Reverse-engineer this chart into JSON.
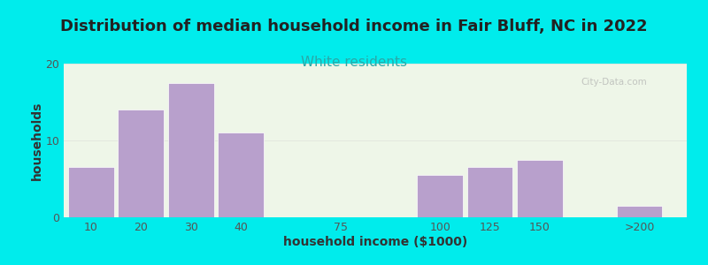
{
  "title": "Distribution of median household income in Fair Bluff, NC in 2022",
  "subtitle": "White residents",
  "xlabel": "household income ($1000)",
  "ylabel": "households",
  "bar_labels": [
    "10",
    "20",
    "30",
    "40",
    "75",
    "100",
    "125",
    "150",
    ">200"
  ],
  "bar_values": [
    6.5,
    14,
    17.5,
    11,
    0,
    5.5,
    6.5,
    7.5,
    1.5
  ],
  "bar_color": "#b8a0cc",
  "bar_edge_color": "#ffffff",
  "ylim": [
    0,
    20
  ],
  "yticks": [
    0,
    10,
    20
  ],
  "background_outer": "#00ecec",
  "background_plot": "#eef6e8",
  "title_fontsize": 13,
  "subtitle_fontsize": 11,
  "subtitle_color": "#2aa8a8",
  "title_color": "#222222",
  "axis_label_fontsize": 10,
  "watermark": "City-Data.com",
  "grid_color": "#cccccc",
  "tick_label_color": "#555555",
  "x_positions": [
    0,
    1,
    2,
    3,
    5,
    7,
    8,
    9,
    11
  ],
  "bar_width": 0.92
}
